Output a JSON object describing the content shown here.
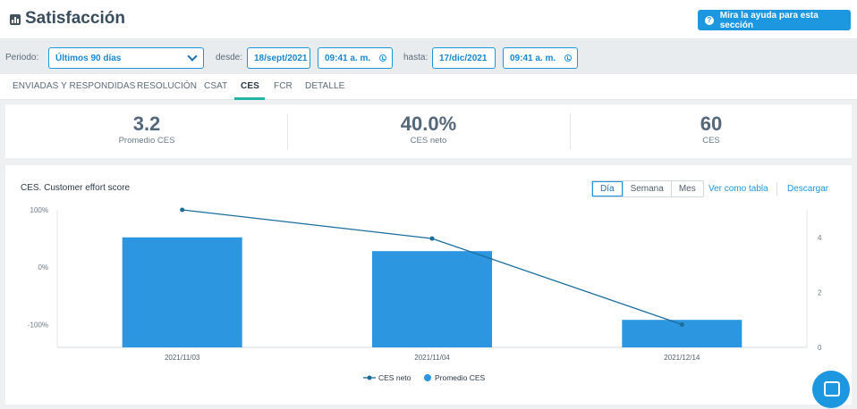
{
  "header": {
    "title": "Satisfacción",
    "help_label": "Mira la ayuda para esta sección",
    "help_icon": "question-icon"
  },
  "filters": {
    "period_label": "Periodo:",
    "period_value": "Últimos 90 días",
    "from_label": "desde:",
    "from_date": "18/sept/2021",
    "from_time": "09:41 a. m.",
    "to_label": "hasta:",
    "to_date": "17/dic/2021",
    "to_time": "09:41 a. m."
  },
  "tabs": [
    "ENVIADAS Y RESPONDIDAS",
    "RESOLUCIÓN",
    "CSAT",
    "CES",
    "FCR",
    "DETALLE"
  ],
  "active_tab": "CES",
  "kpis": [
    {
      "value": "3.2",
      "label": "Promedio CES"
    },
    {
      "value": "40.0%",
      "label": "CES neto"
    },
    {
      "value": "60",
      "label": "CES"
    }
  ],
  "chart_panel": {
    "title": "CES. Customer effort score",
    "granularity": [
      "Día",
      "Semana",
      "Mes"
    ],
    "selected_granularity": "Día",
    "view_table_label": "Ver como tabla",
    "download_label": "Descargar"
  },
  "chart_data": {
    "type": "bar",
    "categories": [
      "2021/11/03",
      "2021/11/04",
      "2021/12/14"
    ],
    "series": [
      {
        "name": "Promedio CES",
        "kind": "bar",
        "axis": "right",
        "values": [
          4,
          3.5,
          1
        ],
        "color": "#2d96e0"
      },
      {
        "name": "CES neto",
        "kind": "line",
        "axis": "left",
        "values": [
          100,
          50,
          -100
        ],
        "color": "#1a6d9c"
      }
    ],
    "y_left": {
      "ticks": [
        "100%",
        "0%",
        "-100%"
      ],
      "values": [
        100,
        0,
        -100
      ],
      "range": [
        -140,
        100
      ]
    },
    "y_right": {
      "ticks": [
        "0",
        "2",
        "4"
      ],
      "values": [
        0,
        2,
        4
      ],
      "range": [
        0,
        5
      ]
    },
    "legend": [
      "CES neto",
      "Promedio CES"
    ],
    "legend_position": "bottom"
  },
  "colors": {
    "accent": "#1d97e0",
    "tab_underline": "#22b5a4"
  }
}
